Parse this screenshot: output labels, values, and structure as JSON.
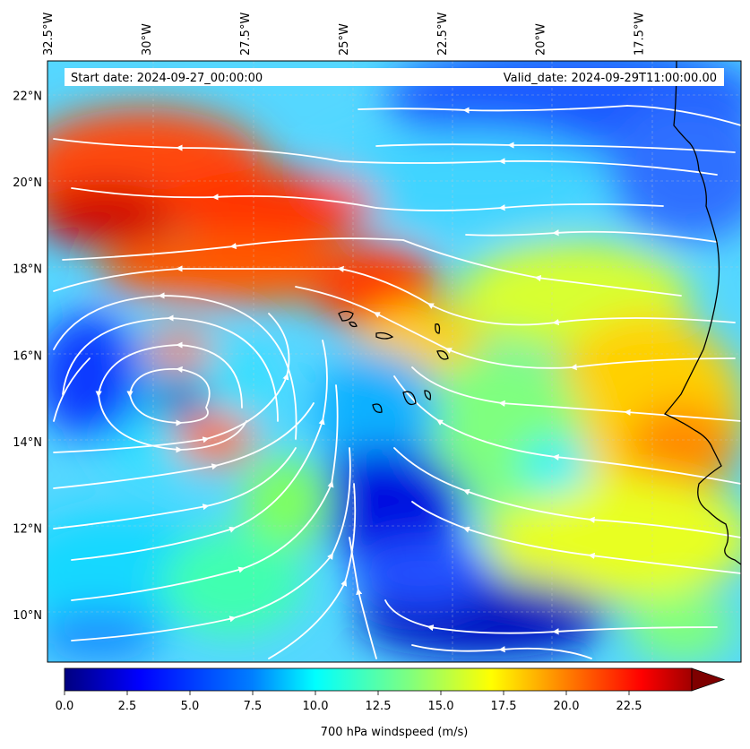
{
  "map": {
    "start_date_label": "Start date: 2024-09-27_00:00:00",
    "valid_date_label": "Valid_date: 2024-09-29T11:00:00.00",
    "lon_ticks": [
      {
        "value": -32.5,
        "label": "32.5°W"
      },
      {
        "value": -30.0,
        "label": "30°W"
      },
      {
        "value": -27.5,
        "label": "27.5°W"
      },
      {
        "value": -25.0,
        "label": "25°W"
      },
      {
        "value": -22.5,
        "label": "22.5°W"
      },
      {
        "value": -20.0,
        "label": "20°W"
      },
      {
        "value": -17.5,
        "label": "17.5°W"
      }
    ],
    "lat_ticks": [
      {
        "value": 22,
        "label": "22°N"
      },
      {
        "value": 20,
        "label": "20°N"
      },
      {
        "value": 18,
        "label": "18°N"
      },
      {
        "value": 16,
        "label": "16°N"
      },
      {
        "value": 14,
        "label": "14°N"
      },
      {
        "value": 12,
        "label": "12°N"
      },
      {
        "value": 10,
        "label": "10°N"
      }
    ],
    "extent": {
      "lon_min": -32.5,
      "lon_max": -14.9,
      "lat_min": 8.9,
      "lat_max": 22.8
    },
    "field": "700 hPa wind speed with streamlines",
    "streamline_color": "#ffffff",
    "coastline_color": "#000000"
  },
  "colorbar": {
    "label": "700 hPa windspeed (m/s)",
    "vmin": 0,
    "vmax": 25,
    "extend": "max",
    "ticks": [
      {
        "value": 0.0,
        "label": "0.0"
      },
      {
        "value": 2.5,
        "label": "2.5"
      },
      {
        "value": 5.0,
        "label": "5.0"
      },
      {
        "value": 7.5,
        "label": "7.5"
      },
      {
        "value": 10.0,
        "label": "10.0"
      },
      {
        "value": 12.5,
        "label": "12.5"
      },
      {
        "value": 15.0,
        "label": "15.0"
      },
      {
        "value": 17.5,
        "label": "17.5"
      },
      {
        "value": 20.0,
        "label": "20.0"
      },
      {
        "value": 22.5,
        "label": "22.5"
      }
    ],
    "colormap": "jet",
    "colors": [
      "#00007f",
      "#0000ff",
      "#007fff",
      "#00ffff",
      "#7fff7f",
      "#ffff00",
      "#ff7f00",
      "#ff0000",
      "#7f0000"
    ]
  }
}
